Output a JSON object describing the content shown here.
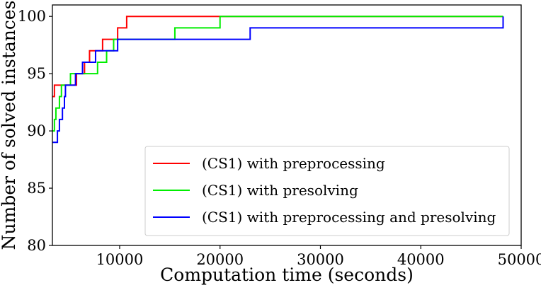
{
  "chart_data": {
    "type": "line",
    "title": "",
    "xlabel": "Computation time (seconds)",
    "ylabel": "Number of solved instances",
    "xlim": [
      3300,
      50000
    ],
    "ylim": [
      80,
      101
    ],
    "xticks": [
      10000,
      20000,
      30000,
      40000,
      50000
    ],
    "xtick_labels": [
      "10000",
      "20000",
      "30000",
      "40000",
      "50000"
    ],
    "yticks": [
      80,
      85,
      90,
      95,
      100
    ],
    "ytick_labels": [
      "80",
      "85",
      "90",
      "95",
      "100"
    ],
    "grid": false,
    "legend_position": "lower-right",
    "step": "post",
    "series": [
      {
        "name": "(CS1) with preprocessing",
        "color": "#ff0000",
        "points": [
          [
            3300,
            93
          ],
          [
            3500,
            94
          ],
          [
            5700,
            95
          ],
          [
            6500,
            96
          ],
          [
            7000,
            97
          ],
          [
            8300,
            98
          ],
          [
            9800,
            99
          ],
          [
            10700,
            100
          ],
          [
            20000,
            100
          ],
          [
            48200,
            100
          ]
        ]
      },
      {
        "name": "(CS1) with presolving",
        "color": "#00ee00",
        "points": [
          [
            3300,
            90
          ],
          [
            3500,
            91
          ],
          [
            3650,
            92
          ],
          [
            4000,
            93
          ],
          [
            4200,
            94
          ],
          [
            5100,
            95
          ],
          [
            7800,
            96
          ],
          [
            8700,
            97
          ],
          [
            9400,
            98
          ],
          [
            15500,
            99
          ],
          [
            20000,
            100
          ],
          [
            48200,
            100
          ]
        ]
      },
      {
        "name": "(CS1) with preprocessing and presolving",
        "color": "#0000ff",
        "points": [
          [
            3300,
            89
          ],
          [
            3800,
            90
          ],
          [
            4000,
            91
          ],
          [
            4300,
            92
          ],
          [
            4500,
            93
          ],
          [
            4600,
            94
          ],
          [
            5600,
            95
          ],
          [
            6300,
            96
          ],
          [
            7600,
            97
          ],
          [
            9800,
            98
          ],
          [
            23000,
            99
          ],
          [
            48200,
            100
          ]
        ]
      }
    ]
  }
}
